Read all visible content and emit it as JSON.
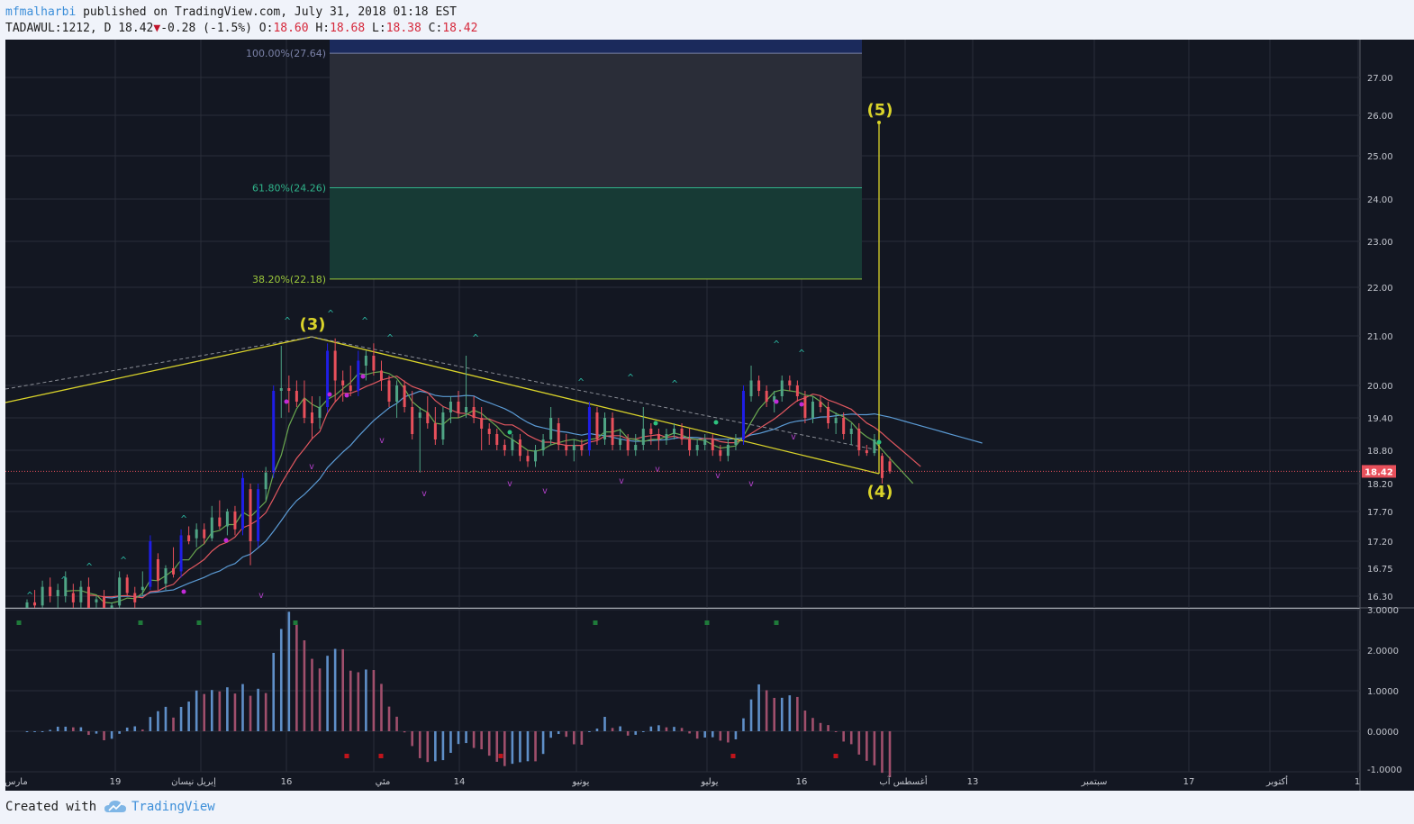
{
  "header": {
    "author": "mfmalharbi",
    "published_text": " published on TradingView.com, July 31, 2018 01:18 EST",
    "symbol_text": "TADAWUL:1212, D 18.42",
    "change_text": "-0.28 (-1.5%)",
    "o_label": "O:",
    "o_value": "18.60",
    "h_label": "H:",
    "h_value": "18.68",
    "l_label": "L:",
    "l_value": "18.38",
    "c_label": "C:",
    "c_value": "18.42"
  },
  "footer": {
    "created": "Created with",
    "brand": "TradingView"
  },
  "colors": {
    "bg": "#131722",
    "up": "#4fa485",
    "down": "#e8505b",
    "blue": "#1f1ee6",
    "yellow": "#d9d32a",
    "grid": "#2a2e39"
  },
  "chart_data": {
    "type": "candlestick",
    "price_axis": {
      "ticks": [
        27.0,
        26.0,
        25.0,
        24.0,
        23.0,
        22.0,
        21.0,
        20.0,
        19.4,
        18.8,
        18.2,
        17.7,
        17.2,
        16.75,
        16.3
      ],
      "tick_labels": [
        "27.00",
        "26.00",
        "25.00",
        "24.00",
        "23.00",
        "22.00",
        "21.00",
        "20.00",
        "19.40",
        "18.80",
        "18.20",
        "17.70",
        "17.20",
        "16.75",
        "16.30"
      ],
      "last_price": 18.42,
      "last_price_label": "18.42"
    },
    "time_axis": {
      "labels": [
        "مارس",
        "19",
        "إبريل نيسان",
        "16",
        "مئي",
        "14",
        "يونيو",
        "يوليو",
        "16",
        "أغسطس آب",
        "13",
        "سبتمبر",
        "17",
        "أكتوبر",
        "1"
      ]
    },
    "oscillator_axis": {
      "ticks": [
        3.0,
        2.0,
        1.0,
        0.0,
        -1.0
      ],
      "tick_labels": [
        "3.0000",
        "2.0000",
        "1.0000",
        "0.0000",
        "-1.0000"
      ]
    },
    "fib_levels": [
      {
        "label": "100.00%(27.64)",
        "value": 27.64
      },
      {
        "label": "61.80%(24.26)",
        "value": 24.26
      },
      {
        "label": "38.20%(22.18)",
        "value": 22.18
      }
    ],
    "wave_labels": [
      "(3)",
      "(4)",
      "(5)"
    ],
    "candles": [
      {
        "o": 16.1,
        "h": 16.25,
        "l": 15.9,
        "c": 16.2
      },
      {
        "o": 16.2,
        "h": 16.4,
        "l": 16.05,
        "c": 16.15
      },
      {
        "o": 16.15,
        "h": 16.55,
        "l": 16.0,
        "c": 16.45
      },
      {
        "o": 16.45,
        "h": 16.6,
        "l": 16.2,
        "c": 16.3
      },
      {
        "o": 16.3,
        "h": 16.5,
        "l": 16.1,
        "c": 16.4
      },
      {
        "o": 16.3,
        "h": 16.7,
        "l": 16.2,
        "c": 16.6
      },
      {
        "o": 16.35,
        "h": 16.5,
        "l": 16.1,
        "c": 16.2
      },
      {
        "o": 16.2,
        "h": 16.55,
        "l": 16.05,
        "c": 16.45
      },
      {
        "o": 16.45,
        "h": 16.6,
        "l": 16.0,
        "c": 16.1
      },
      {
        "o": 16.2,
        "h": 16.3,
        "l": 15.9,
        "c": 16.25
      },
      {
        "o": 16.3,
        "h": 16.4,
        "l": 15.9,
        "c": 16.0
      },
      {
        "o": 16.0,
        "h": 16.2,
        "l": 15.8,
        "c": 16.15
      },
      {
        "o": 16.15,
        "h": 16.7,
        "l": 16.05,
        "c": 16.6
      },
      {
        "o": 16.6,
        "h": 16.65,
        "l": 16.3,
        "c": 16.35
      },
      {
        "o": 16.35,
        "h": 16.45,
        "l": 16.1,
        "c": 16.2
      },
      {
        "o": 16.4,
        "h": 16.7,
        "l": 16.3,
        "c": 16.45
      },
      {
        "o": 16.45,
        "h": 17.3,
        "l": 16.4,
        "c": 17.2
      },
      {
        "o": 16.9,
        "h": 17.0,
        "l": 16.4,
        "c": 16.55
      },
      {
        "o": 16.5,
        "h": 16.8,
        "l": 16.4,
        "c": 16.75
      },
      {
        "o": 16.75,
        "h": 17.1,
        "l": 16.6,
        "c": 16.65
      },
      {
        "o": 16.7,
        "h": 17.4,
        "l": 16.6,
        "c": 17.3
      },
      {
        "o": 17.3,
        "h": 17.45,
        "l": 17.15,
        "c": 17.2
      },
      {
        "o": 17.25,
        "h": 17.5,
        "l": 17.1,
        "c": 17.4
      },
      {
        "o": 17.4,
        "h": 17.5,
        "l": 17.15,
        "c": 17.25
      },
      {
        "o": 17.25,
        "h": 17.8,
        "l": 17.2,
        "c": 17.6
      },
      {
        "o": 17.6,
        "h": 17.9,
        "l": 17.4,
        "c": 17.45
      },
      {
        "o": 17.45,
        "h": 17.75,
        "l": 17.3,
        "c": 17.7
      },
      {
        "o": 17.7,
        "h": 17.8,
        "l": 17.3,
        "c": 17.4
      },
      {
        "o": 17.4,
        "h": 18.4,
        "l": 17.3,
        "c": 18.3
      },
      {
        "o": 18.1,
        "h": 18.2,
        "l": 16.8,
        "c": 17.2
      },
      {
        "o": 17.2,
        "h": 18.2,
        "l": 17.1,
        "c": 18.1
      },
      {
        "o": 18.1,
        "h": 18.5,
        "l": 17.9,
        "c": 18.4
      },
      {
        "o": 18.4,
        "h": 20.0,
        "l": 18.3,
        "c": 19.9
      },
      {
        "o": 19.9,
        "h": 20.8,
        "l": 19.4,
        "c": 19.95
      },
      {
        "o": 19.95,
        "h": 20.2,
        "l": 19.5,
        "c": 19.9
      },
      {
        "o": 19.9,
        "h": 20.1,
        "l": 19.6,
        "c": 19.7
      },
      {
        "o": 19.75,
        "h": 20.1,
        "l": 19.3,
        "c": 19.4
      },
      {
        "o": 19.5,
        "h": 19.8,
        "l": 19.0,
        "c": 19.3
      },
      {
        "o": 19.4,
        "h": 19.8,
        "l": 19.2,
        "c": 19.6
      },
      {
        "o": 19.6,
        "h": 20.85,
        "l": 19.5,
        "c": 20.7
      },
      {
        "o": 20.7,
        "h": 20.95,
        "l": 19.7,
        "c": 20.1
      },
      {
        "o": 20.1,
        "h": 20.3,
        "l": 19.7,
        "c": 20.0
      },
      {
        "o": 20.0,
        "h": 20.4,
        "l": 19.8,
        "c": 19.9
      },
      {
        "o": 19.9,
        "h": 20.7,
        "l": 19.8,
        "c": 20.5
      },
      {
        "o": 20.4,
        "h": 20.7,
        "l": 20.1,
        "c": 20.6
      },
      {
        "o": 20.6,
        "h": 20.85,
        "l": 20.2,
        "c": 20.3
      },
      {
        "o": 20.3,
        "h": 20.5,
        "l": 19.9,
        "c": 20.1
      },
      {
        "o": 20.1,
        "h": 20.2,
        "l": 19.6,
        "c": 19.7
      },
      {
        "o": 19.7,
        "h": 20.1,
        "l": 19.4,
        "c": 20.0
      },
      {
        "o": 20.0,
        "h": 20.1,
        "l": 19.5,
        "c": 19.6
      },
      {
        "o": 19.6,
        "h": 19.9,
        "l": 19.0,
        "c": 19.1
      },
      {
        "o": 19.4,
        "h": 19.6,
        "l": 18.4,
        "c": 19.5
      },
      {
        "o": 19.5,
        "h": 19.8,
        "l": 19.2,
        "c": 19.3
      },
      {
        "o": 19.3,
        "h": 19.6,
        "l": 18.9,
        "c": 19.0
      },
      {
        "o": 19.0,
        "h": 19.6,
        "l": 18.9,
        "c": 19.5
      },
      {
        "o": 19.5,
        "h": 19.8,
        "l": 19.3,
        "c": 19.7
      },
      {
        "o": 19.7,
        "h": 19.9,
        "l": 19.4,
        "c": 19.5
      },
      {
        "o": 19.5,
        "h": 20.6,
        "l": 19.4,
        "c": 19.6
      },
      {
        "o": 19.6,
        "h": 19.8,
        "l": 19.3,
        "c": 19.4
      },
      {
        "o": 19.4,
        "h": 19.6,
        "l": 18.8,
        "c": 19.2
      },
      {
        "o": 19.2,
        "h": 19.3,
        "l": 18.9,
        "c": 19.1
      },
      {
        "o": 19.1,
        "h": 19.2,
        "l": 18.8,
        "c": 18.9
      },
      {
        "o": 18.9,
        "h": 19.0,
        "l": 18.7,
        "c": 18.8
      },
      {
        "o": 18.8,
        "h": 19.1,
        "l": 18.7,
        "c": 19.0
      },
      {
        "o": 19.0,
        "h": 19.1,
        "l": 18.6,
        "c": 18.7
      },
      {
        "o": 18.7,
        "h": 18.8,
        "l": 18.5,
        "c": 18.6
      },
      {
        "o": 18.6,
        "h": 18.9,
        "l": 18.5,
        "c": 18.8
      },
      {
        "o": 18.8,
        "h": 19.1,
        "l": 18.7,
        "c": 19.0
      },
      {
        "o": 19.0,
        "h": 19.6,
        "l": 18.9,
        "c": 19.4
      },
      {
        "o": 19.3,
        "h": 19.4,
        "l": 18.8,
        "c": 18.9
      },
      {
        "o": 18.9,
        "h": 19.1,
        "l": 18.7,
        "c": 18.8
      },
      {
        "o": 18.8,
        "h": 19.0,
        "l": 18.6,
        "c": 18.9
      },
      {
        "o": 18.9,
        "h": 19.0,
        "l": 18.7,
        "c": 18.8
      },
      {
        "o": 18.8,
        "h": 19.7,
        "l": 18.7,
        "c": 19.6
      },
      {
        "o": 19.5,
        "h": 19.6,
        "l": 18.9,
        "c": 19.0
      },
      {
        "o": 19.0,
        "h": 19.5,
        "l": 18.9,
        "c": 19.4
      },
      {
        "o": 19.4,
        "h": 19.5,
        "l": 18.8,
        "c": 18.9
      },
      {
        "o": 18.9,
        "h": 19.2,
        "l": 18.8,
        "c": 19.0
      },
      {
        "o": 19.0,
        "h": 19.1,
        "l": 18.7,
        "c": 18.8
      },
      {
        "o": 18.8,
        "h": 19.1,
        "l": 18.7,
        "c": 18.9
      },
      {
        "o": 18.9,
        "h": 19.6,
        "l": 18.8,
        "c": 19.2
      },
      {
        "o": 19.2,
        "h": 19.3,
        "l": 18.9,
        "c": 19.1
      },
      {
        "o": 19.1,
        "h": 19.2,
        "l": 18.8,
        "c": 19.0
      },
      {
        "o": 19.0,
        "h": 19.2,
        "l": 18.9,
        "c": 19.1
      },
      {
        "o": 19.1,
        "h": 19.3,
        "l": 19.0,
        "c": 19.2
      },
      {
        "o": 19.2,
        "h": 19.3,
        "l": 18.9,
        "c": 19.0
      },
      {
        "o": 19.0,
        "h": 19.2,
        "l": 18.7,
        "c": 18.8
      },
      {
        "o": 18.8,
        "h": 19.0,
        "l": 18.7,
        "c": 18.9
      },
      {
        "o": 18.9,
        "h": 19.1,
        "l": 18.8,
        "c": 19.0
      },
      {
        "o": 19.0,
        "h": 19.1,
        "l": 18.7,
        "c": 18.8
      },
      {
        "o": 18.8,
        "h": 18.9,
        "l": 18.6,
        "c": 18.7
      },
      {
        "o": 18.7,
        "h": 19.0,
        "l": 18.6,
        "c": 18.9
      },
      {
        "o": 18.9,
        "h": 19.1,
        "l": 18.8,
        "c": 19.0
      },
      {
        "o": 19.0,
        "h": 20.0,
        "l": 18.9,
        "c": 19.9
      },
      {
        "o": 19.8,
        "h": 20.4,
        "l": 19.7,
        "c": 20.1
      },
      {
        "o": 20.1,
        "h": 20.2,
        "l": 19.8,
        "c": 19.9
      },
      {
        "o": 19.9,
        "h": 20.0,
        "l": 19.6,
        "c": 19.7
      },
      {
        "o": 19.7,
        "h": 19.9,
        "l": 19.5,
        "c": 19.8
      },
      {
        "o": 19.8,
        "h": 20.2,
        "l": 19.7,
        "c": 20.1
      },
      {
        "o": 20.1,
        "h": 20.2,
        "l": 19.9,
        "c": 20.0
      },
      {
        "o": 20.0,
        "h": 20.1,
        "l": 19.7,
        "c": 19.8
      },
      {
        "o": 19.8,
        "h": 19.9,
        "l": 19.3,
        "c": 19.4
      },
      {
        "o": 19.4,
        "h": 19.8,
        "l": 19.3,
        "c": 19.7
      },
      {
        "o": 19.7,
        "h": 19.8,
        "l": 19.5,
        "c": 19.6
      },
      {
        "o": 19.6,
        "h": 19.7,
        "l": 19.2,
        "c": 19.3
      },
      {
        "o": 19.3,
        "h": 19.5,
        "l": 19.1,
        "c": 19.4
      },
      {
        "o": 19.4,
        "h": 19.5,
        "l": 19.0,
        "c": 19.1
      },
      {
        "o": 19.1,
        "h": 19.3,
        "l": 18.9,
        "c": 19.2
      },
      {
        "o": 19.2,
        "h": 19.3,
        "l": 18.7,
        "c": 18.8
      },
      {
        "o": 18.8,
        "h": 18.9,
        "l": 18.7,
        "c": 18.75
      },
      {
        "o": 18.75,
        "h": 19.1,
        "l": 18.7,
        "c": 19.0
      },
      {
        "o": 18.7,
        "h": 18.75,
        "l": 18.2,
        "c": 18.3
      },
      {
        "o": 18.6,
        "h": 18.68,
        "l": 18.38,
        "c": 18.42
      }
    ]
  }
}
